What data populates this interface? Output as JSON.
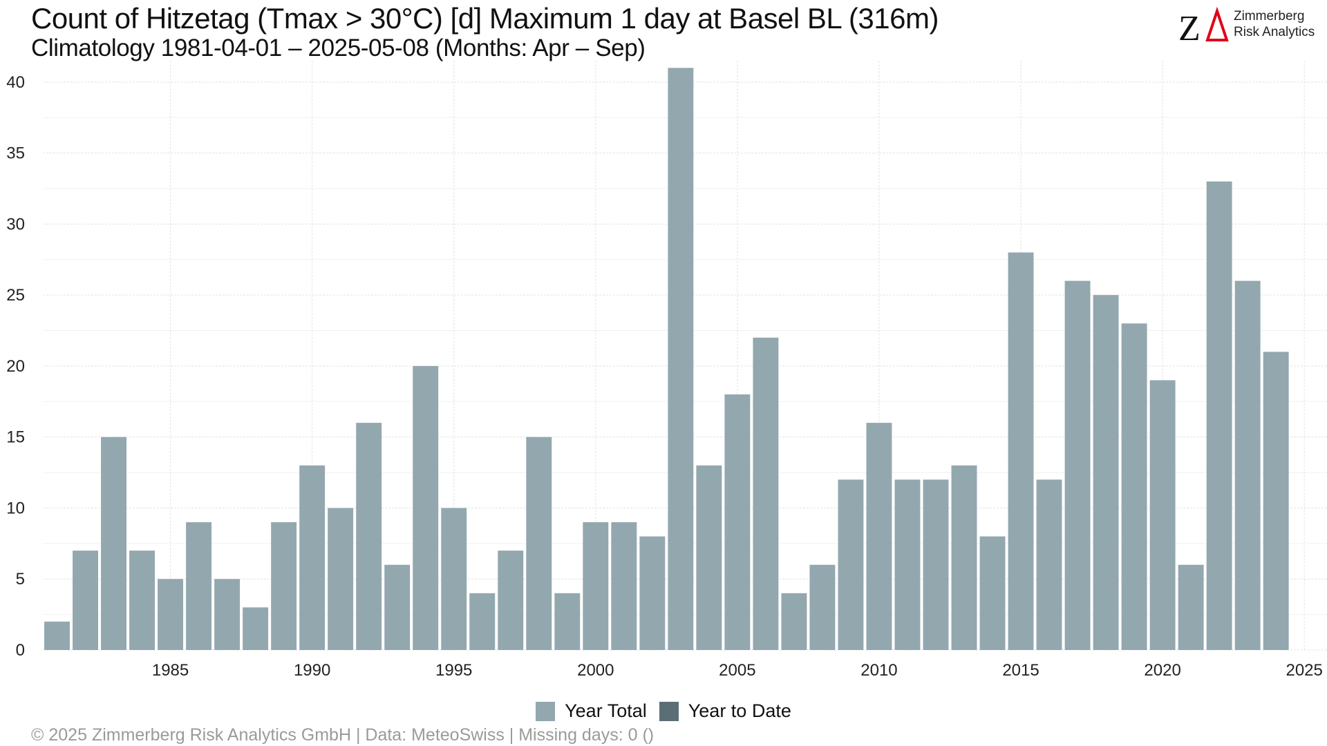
{
  "header": {
    "title": "Count of Hitzetag (Tmax > 30°C) [d] Maximum 1 day at Basel  BL (316m)",
    "subtitle": "Climatology 1981-04-01 – 2025-05-08 (Months: Apr – Sep)"
  },
  "logo": {
    "mark_letter": "Z",
    "line1": "Zimmerberg",
    "line2": "Risk Analytics",
    "mark_color": "#e0001a"
  },
  "legend": {
    "items": [
      {
        "label": "Year Total",
        "color": "#93a7ae"
      },
      {
        "label": "Year to Date",
        "color": "#5b6e76"
      }
    ]
  },
  "footer": {
    "text": "©  2025 Zimmerberg Risk Analytics GmbH | Data: MeteoSwiss | Missing days: 0 ()"
  },
  "chart_data": {
    "type": "bar",
    "title": "Count of Hitzetag (Tmax > 30°C) [d] Maximum 1 day at Basel  BL (316m)",
    "xlabel": "",
    "ylabel": "",
    "ylim": [
      0,
      41.5
    ],
    "xlim": [
      1980.5,
      2025.8
    ],
    "yticks": [
      0,
      5,
      10,
      15,
      20,
      25,
      30,
      35,
      40
    ],
    "xticks": [
      1985,
      1990,
      1995,
      2000,
      2005,
      2010,
      2015,
      2020,
      2025
    ],
    "grid": true,
    "legend_position": "bottom",
    "series": [
      {
        "name": "Year Total",
        "color": "#93a7ae",
        "x": [
          1981,
          1982,
          1983,
          1984,
          1985,
          1986,
          1987,
          1988,
          1989,
          1990,
          1991,
          1992,
          1993,
          1994,
          1995,
          1996,
          1997,
          1998,
          1999,
          2000,
          2001,
          2002,
          2003,
          2004,
          2005,
          2006,
          2007,
          2008,
          2009,
          2010,
          2011,
          2012,
          2013,
          2014,
          2015,
          2016,
          2017,
          2018,
          2019,
          2020,
          2021,
          2022,
          2023,
          2024
        ],
        "values": [
          2,
          7,
          15,
          7,
          5,
          9,
          5,
          3,
          9,
          13,
          10,
          16,
          6,
          20,
          10,
          4,
          7,
          15,
          4,
          9,
          9,
          8,
          41,
          13,
          18,
          22,
          4,
          6,
          12,
          16,
          12,
          12,
          13,
          8,
          28,
          12,
          26,
          25,
          23,
          19,
          6,
          33,
          26,
          21
        ]
      },
      {
        "name": "Year to Date",
        "color": "#5b6e76",
        "x": [
          2025
        ],
        "values": [
          0
        ]
      }
    ]
  }
}
